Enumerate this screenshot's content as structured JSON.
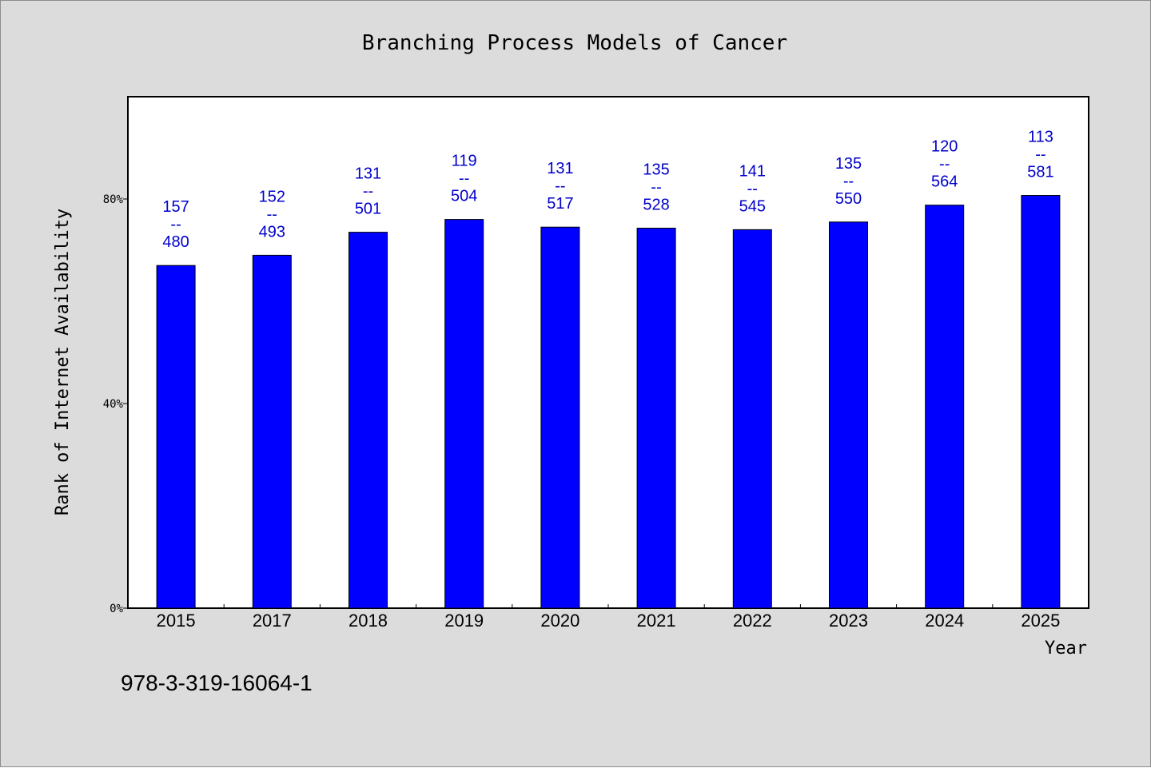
{
  "chart_data": {
    "type": "bar",
    "title": "Branching Process Models of Cancer",
    "xlabel": "Year",
    "ylabel": "Rank of Internet Availability",
    "categories": [
      "2015",
      "2017",
      "2018",
      "2019",
      "2020",
      "2021",
      "2022",
      "2023",
      "2024",
      "2025"
    ],
    "values": [
      67,
      69,
      73.5,
      76,
      74.5,
      74.3,
      74,
      75.5,
      78.8,
      80.7
    ],
    "data_labels": [
      {
        "top": "157",
        "sep": "--",
        "bottom": "480"
      },
      {
        "top": "152",
        "sep": "--",
        "bottom": "493"
      },
      {
        "top": "131",
        "sep": "--",
        "bottom": "501"
      },
      {
        "top": "119",
        "sep": "--",
        "bottom": "504"
      },
      {
        "top": "131",
        "sep": "--",
        "bottom": "517"
      },
      {
        "top": "135",
        "sep": "--",
        "bottom": "528"
      },
      {
        "top": "141",
        "sep": "--",
        "bottom": "545"
      },
      {
        "top": "135",
        "sep": "--",
        "bottom": "550"
      },
      {
        "top": "120",
        "sep": "--",
        "bottom": "564"
      },
      {
        "top": "113",
        "sep": "--",
        "bottom": "581"
      }
    ],
    "ylim": [
      0,
      100
    ],
    "yticks": [
      0,
      40,
      80
    ],
    "ytick_labels": [
      "0%",
      "40%",
      "80%"
    ],
    "grid": false,
    "legend": "none",
    "bar_color": "#0000ff",
    "label_color": "#0000cc"
  },
  "footer": {
    "isbn": "978-3-319-16064-1"
  }
}
